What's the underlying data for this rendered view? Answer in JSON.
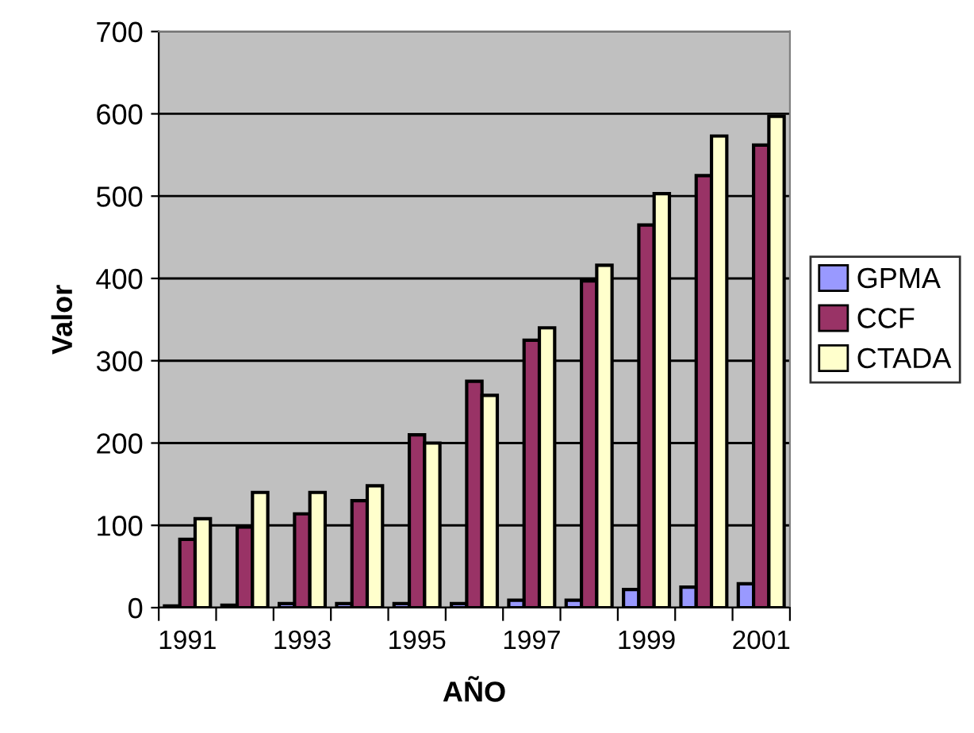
{
  "chart_data": {
    "type": "bar",
    "xlabel": "AÑO",
    "ylabel": "Valor",
    "categories": [
      "1991",
      null,
      "1993",
      null,
      "1995",
      null,
      "1997",
      null,
      "1999",
      null,
      "2001"
    ],
    "series": [
      {
        "name": "GPMA",
        "color": "#9999ff",
        "values": [
          2,
          3,
          5,
          5,
          5,
          5,
          9,
          9,
          22,
          25,
          29
        ]
      },
      {
        "name": "CCF",
        "color": "#993366",
        "values": [
          83,
          98,
          114,
          130,
          210,
          275,
          325,
          397,
          465,
          525,
          562
        ]
      },
      {
        "name": "CTADA",
        "color": "#ffffcc",
        "values": [
          108,
          140,
          140,
          148,
          200,
          258,
          340,
          416,
          503,
          573,
          597
        ]
      }
    ],
    "ylim": [
      0,
      700
    ],
    "yticks": [
      0,
      100,
      200,
      300,
      400,
      500,
      600,
      700
    ],
    "grid": "y",
    "legend": "right"
  }
}
